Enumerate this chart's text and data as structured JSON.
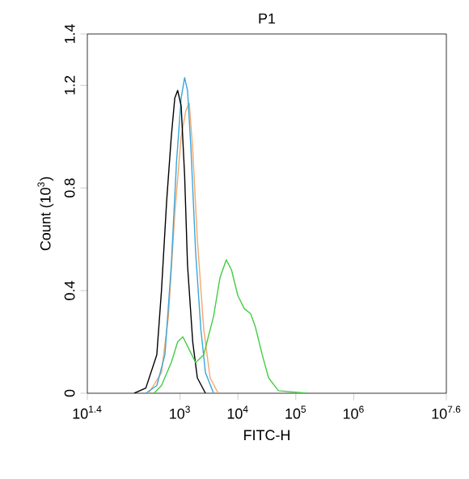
{
  "chart_data": {
    "type": "line",
    "title": "P1",
    "xlabel": "FITC-H",
    "ylabel": "Count (10$^{3}$)",
    "log": "x",
    "xlim": [
      25.12,
      39810717
    ],
    "ylim": [
      0,
      1.4
    ],
    "xticks": [
      {
        "value": 25.12,
        "label": "10$^{1.4}$"
      },
      {
        "value": 1000,
        "label": "10$^{3}$"
      },
      {
        "value": 10000,
        "label": "10$^{4}$"
      },
      {
        "value": 100000,
        "label": "10$^{5}$"
      },
      {
        "value": 1000000,
        "label": "10$^{6}$"
      },
      {
        "value": 39810717,
        "label": "10$^{7.6}$"
      }
    ],
    "yticks": [
      0,
      0.4,
      0.8,
      1.2,
      1.4
    ],
    "grid": false,
    "marker": "none",
    "line_style": "solid",
    "series": [
      {
        "color": "#f5a76b",
        "x": [
          288,
          479,
          631,
          813,
          1047,
          1259,
          1445,
          1660,
          1995,
          2570,
          3311,
          4571
        ],
        "values": [
          0,
          0.08,
          0.3,
          0.7,
          1.0,
          1.1,
          1.13,
          0.95,
          0.6,
          0.25,
          0.06,
          0
        ]
      },
      {
        "color": "#3aa6d8",
        "x": [
          257,
          398,
          550,
          708,
          871,
          1047,
          1202,
          1349,
          1549,
          1862,
          2291,
          2754,
          3802
        ],
        "values": [
          0,
          0.03,
          0.15,
          0.5,
          0.9,
          1.15,
          1.23,
          1.18,
          0.95,
          0.55,
          0.25,
          0.08,
          0
        ]
      },
      {
        "color": "#000000",
        "x": [
          162,
          257,
          398,
          479,
          589,
          708,
          813,
          912,
          1047,
          1202,
          1349,
          1660,
          1995,
          2754
        ],
        "values": [
          0,
          0.02,
          0.15,
          0.4,
          0.75,
          1.0,
          1.15,
          1.18,
          1.12,
          0.85,
          0.5,
          0.2,
          0.06,
          0
        ]
      },
      {
        "color": "#44cc44",
        "x": [
          355,
          479,
          708,
          912,
          1122,
          1445,
          1862,
          2570,
          3802,
          4898,
          6310,
          7762,
          10000,
          12882,
          16596,
          19953,
          26303,
          33884,
          50119,
          158489
        ],
        "values": [
          0,
          0.03,
          0.12,
          0.2,
          0.22,
          0.17,
          0.12,
          0.15,
          0.3,
          0.45,
          0.52,
          0.48,
          0.38,
          0.33,
          0.31,
          0.26,
          0.15,
          0.06,
          0.01,
          0
        ]
      }
    ]
  }
}
